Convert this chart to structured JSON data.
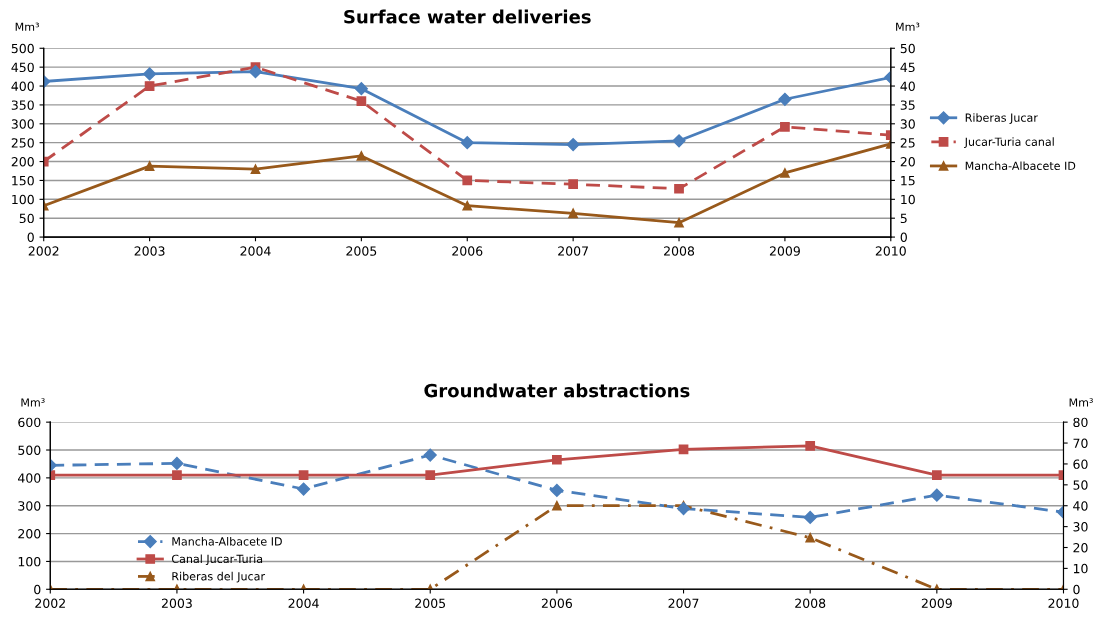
{
  "chart_data": [
    {
      "type": "line",
      "title": "Surface water deliveries",
      "ylabel": "Mm³",
      "y2label": "Mm³",
      "x": [
        2002,
        2003,
        2004,
        2005,
        2006,
        2007,
        2008,
        2009,
        2010
      ],
      "xlim": [
        2002,
        2010
      ],
      "xticks": [
        2002,
        2003,
        2004,
        2005,
        2006,
        2007,
        2008,
        2009,
        2010
      ],
      "ylim": [
        0,
        500
      ],
      "yticks": [
        0,
        50,
        100,
        150,
        200,
        250,
        300,
        350,
        400,
        450,
        500
      ],
      "y2lim": [
        0,
        50
      ],
      "y2ticks": [
        0,
        5,
        10,
        15,
        20,
        25,
        30,
        35,
        40,
        45,
        50
      ],
      "grid": "y",
      "legend": "right",
      "series": [
        {
          "name": "Riberas Jucar",
          "color": "#4a7ebb",
          "marker": "diamond",
          "line_style": "solid",
          "values": [
            412,
            432,
            438,
            393,
            250,
            245,
            255,
            365,
            423
          ]
        },
        {
          "name": "Jucar-Turia canal",
          "color": "#be4b48",
          "marker": "square",
          "line_style": "dashed",
          "values": [
            200,
            400,
            450,
            360,
            150,
            140,
            128,
            292,
            270
          ]
        },
        {
          "name": "Mancha-Albacete ID",
          "color": "#98591b",
          "marker": "triangle",
          "line_style": "solid",
          "values": [
            83,
            188,
            180,
            215,
            83,
            63,
            38,
            170,
            247
          ]
        }
      ]
    },
    {
      "type": "line",
      "title": "Groundwater abstractions",
      "ylabel": "Mm³",
      "y2label": "Mm³",
      "x": [
        2002,
        2003,
        2004,
        2005,
        2006,
        2007,
        2008,
        2009,
        2010
      ],
      "xlim": [
        2002,
        2010
      ],
      "xticks": [
        2002,
        2003,
        2004,
        2005,
        2006,
        2007,
        2008,
        2009,
        2010
      ],
      "ylim": [
        0,
        600
      ],
      "yticks": [
        0,
        100,
        200,
        300,
        400,
        500,
        600
      ],
      "y2lim": [
        0,
        80
      ],
      "y2ticks": [
        0,
        10,
        20,
        30,
        40,
        50,
        60,
        70,
        80
      ],
      "grid": "y",
      "legend": "bottom left",
      "series": [
        {
          "name": "Mancha-Albacete ID",
          "color": "#4a7ebb",
          "marker": "diamond",
          "line_style": "dashed",
          "values": [
            445,
            452,
            360,
            482,
            355,
            290,
            258,
            338,
            277
          ]
        },
        {
          "name": "Canal Jucar-Turia",
          "color": "#be4b48",
          "marker": "square",
          "line_style": "solid",
          "values": [
            410,
            410,
            410,
            410,
            465,
            502,
            515,
            410,
            410
          ]
        },
        {
          "name": "Riberas del Jucar",
          "color": "#98591b",
          "marker": "triangle",
          "line_style": "dashdot",
          "values": [
            0,
            0,
            0,
            0,
            300,
            300,
            185,
            0,
            0
          ]
        }
      ]
    }
  ]
}
